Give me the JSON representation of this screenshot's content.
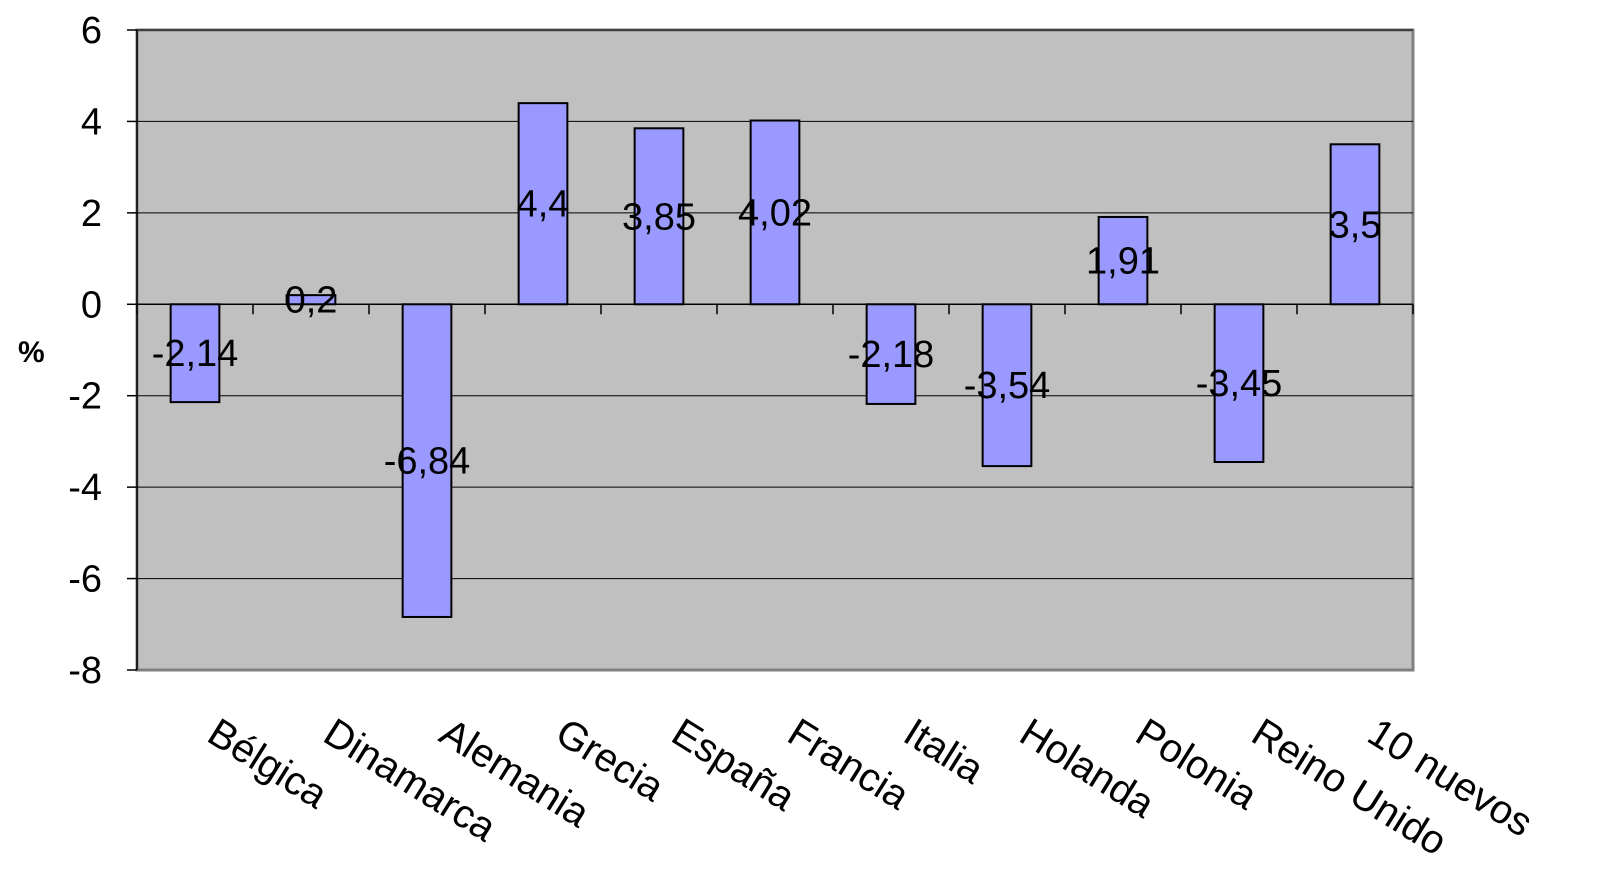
{
  "chart_data": {
    "type": "bar",
    "categories": [
      "Bélgica",
      "Dinamarca",
      "Alemania",
      "Grecia",
      "España",
      "Francia",
      "Italia",
      "Holanda",
      "Polonia",
      "Reino Unido",
      "10 nuevos"
    ],
    "values": [
      -2.14,
      0.2,
      -6.84,
      4.4,
      3.85,
      4.02,
      -2.18,
      -3.54,
      1.91,
      -3.45,
      3.5
    ],
    "data_labels": [
      "-2,14",
      "0,2",
      "-6,84",
      "4,4",
      "3,85",
      "4,02",
      "-2,18",
      "-3,54",
      "1,91",
      "-3,45",
      "3,5"
    ],
    "ylabel": "%",
    "ylim": [
      -8,
      6
    ],
    "yticks": [
      6,
      4,
      2,
      0,
      -2,
      -4,
      -6,
      -8
    ],
    "ytick_labels": [
      "6",
      "4",
      "2",
      "0",
      "-2",
      "-4",
      "-6",
      "-8"
    ],
    "grid": true,
    "colors": {
      "bar_fill": "#9999FF",
      "bar_stroke": "#000000",
      "plot_background": "#C0C0C0",
      "gridline": "#000000"
    }
  }
}
